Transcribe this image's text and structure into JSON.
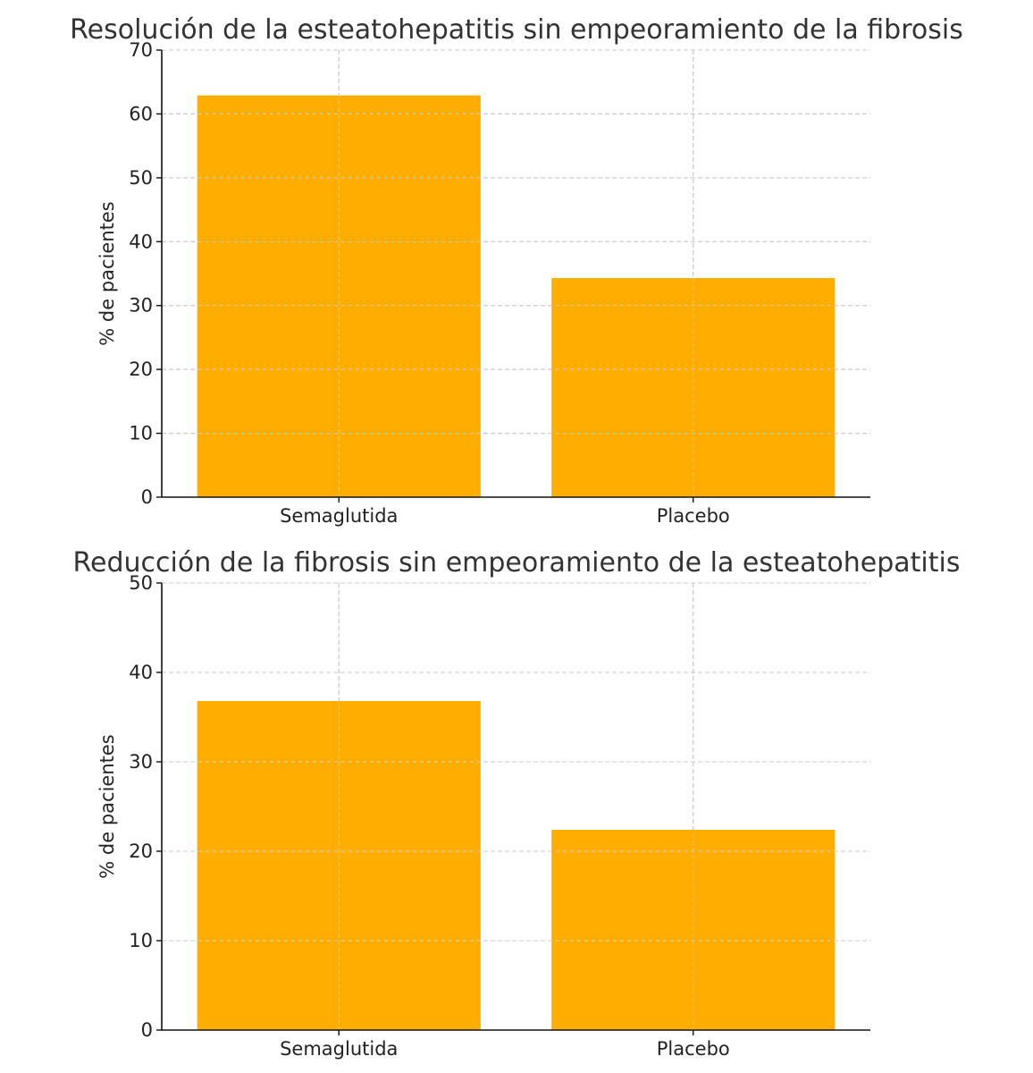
{
  "chart_data": [
    {
      "type": "bar",
      "title": "Resolución de la esteatohepatitis sin empeoramiento de la fibrosis",
      "xlabel": "",
      "ylabel": "% de pacientes",
      "categories": [
        "Semaglutida",
        "Placebo"
      ],
      "values": [
        62.9,
        34.3
      ],
      "ylim": [
        0,
        70
      ],
      "yticks": [
        0,
        10,
        20,
        30,
        40,
        50,
        60,
        70
      ],
      "grid": true,
      "bar_color": "#FFAE00"
    },
    {
      "type": "bar",
      "title": "Reducción de la fibrosis sin empeoramiento de la esteatohepatitis",
      "xlabel": "",
      "ylabel": "% de pacientes",
      "categories": [
        "Semaglutida",
        "Placebo"
      ],
      "values": [
        36.8,
        22.4
      ],
      "ylim": [
        0,
        50
      ],
      "yticks": [
        0,
        10,
        20,
        30,
        40,
        50
      ],
      "grid": true,
      "bar_color": "#FFAE00"
    }
  ]
}
